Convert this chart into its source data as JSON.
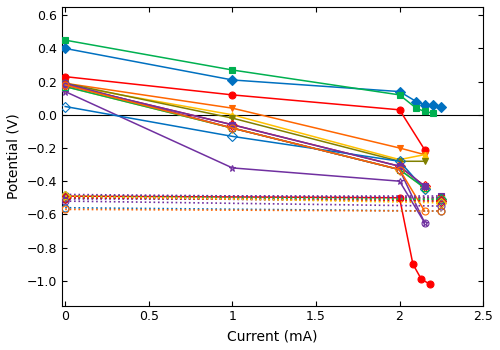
{
  "xlabel": "Current (mA)",
  "ylabel": "Potential (V)",
  "xlim": [
    -0.02,
    2.5
  ],
  "ylim": [
    -1.15,
    0.65
  ],
  "xticks": [
    0.0,
    0.5,
    1.0,
    1.5,
    2.0,
    2.5
  ],
  "yticks": [
    -1.0,
    -0.8,
    -0.6,
    -0.4,
    -0.2,
    0.0,
    0.2,
    0.4,
    0.6
  ],
  "cathode_series": [
    {
      "color": "#0070c0",
      "marker": "D",
      "filled": true,
      "x": [
        0.0,
        1.0,
        2.0,
        2.1,
        2.15,
        2.2,
        2.25
      ],
      "y": [
        0.4,
        0.21,
        0.14,
        0.08,
        0.06,
        0.06,
        0.05
      ]
    },
    {
      "color": "#00b050",
      "marker": "s",
      "filled": true,
      "x": [
        0.0,
        1.0,
        2.0,
        2.1,
        2.15,
        2.2
      ],
      "y": [
        0.45,
        0.27,
        0.12,
        0.04,
        0.02,
        0.01
      ]
    },
    {
      "color": "#ff0000",
      "marker": "o",
      "filled": true,
      "x": [
        0.0,
        1.0,
        2.0,
        2.15
      ],
      "y": [
        0.23,
        0.12,
        0.03,
        -0.21
      ]
    },
    {
      "color": "#ff6600",
      "marker": "v",
      "filled": true,
      "x": [
        0.0,
        1.0,
        2.0,
        2.15
      ],
      "y": [
        0.19,
        0.04,
        -0.2,
        -0.24
      ]
    },
    {
      "color": "#ffc000",
      "marker": "^",
      "filled": true,
      "x": [
        0.0,
        1.0,
        2.0,
        2.15
      ],
      "y": [
        0.18,
        0.0,
        -0.27,
        -0.24
      ]
    },
    {
      "color": "#808000",
      "marker": "v",
      "filled": true,
      "x": [
        0.0,
        1.0,
        2.0,
        2.15
      ],
      "y": [
        0.19,
        -0.02,
        -0.28,
        -0.28
      ]
    },
    {
      "color": "#ff0000",
      "marker": "D",
      "filled": false,
      "x": [
        0.0,
        1.0,
        2.0,
        2.15
      ],
      "y": [
        0.18,
        -0.06,
        -0.31,
        -0.43
      ]
    },
    {
      "color": "#ffc000",
      "marker": "D",
      "filled": false,
      "x": [
        0.0,
        1.0,
        2.0,
        2.15
      ],
      "y": [
        0.17,
        -0.08,
        -0.33,
        -0.44
      ]
    },
    {
      "color": "#7030a0",
      "marker": "*",
      "filled": false,
      "x": [
        0.0,
        1.0,
        2.0,
        2.15
      ],
      "y": [
        0.14,
        -0.32,
        -0.4,
        -0.65
      ]
    },
    {
      "color": "#0070c0",
      "marker": "D",
      "filled": false,
      "x": [
        0.0,
        1.0,
        2.0,
        2.15
      ],
      "y": [
        0.05,
        -0.13,
        -0.28,
        -0.45
      ]
    },
    {
      "color": "#00b050",
      "marker": "s",
      "filled": false,
      "x": [
        0.0,
        1.0,
        2.0,
        2.15
      ],
      "y": [
        0.17,
        -0.08,
        -0.33,
        -0.44
      ]
    },
    {
      "color": "#7030a0",
      "marker": "s",
      "filled": true,
      "x": [
        0.0,
        1.0,
        2.0,
        2.15
      ],
      "y": [
        0.18,
        -0.06,
        -0.31,
        -0.43
      ]
    },
    {
      "color": "#7030a0",
      "marker": "o",
      "filled": false,
      "x": [
        0.0,
        1.0,
        2.0,
        2.15
      ],
      "y": [
        0.19,
        -0.08,
        -0.33,
        -0.65
      ]
    },
    {
      "color": "#ff6600",
      "marker": "o",
      "filled": false,
      "x": [
        0.0,
        1.0,
        2.0,
        2.15
      ],
      "y": [
        0.18,
        -0.08,
        -0.33,
        -0.58
      ]
    },
    {
      "color": "#ff0000",
      "marker": "o",
      "filled": true,
      "x": [
        0.0,
        2.0,
        2.08,
        2.13,
        2.18
      ],
      "y": [
        -0.49,
        -0.5,
        -0.9,
        -0.99,
        -1.02
      ]
    }
  ],
  "anode_series": [
    {
      "color": "#7030a0",
      "marker": "s",
      "filled": true,
      "x": [
        0.0,
        2.25
      ],
      "y": [
        -0.49,
        -0.49
      ]
    },
    {
      "color": "#7030a0",
      "marker": "o",
      "filled": false,
      "x": [
        0.0,
        2.25
      ],
      "y": [
        -0.51,
        -0.51
      ]
    },
    {
      "color": "#0070c0",
      "marker": "s",
      "filled": false,
      "x": [
        0.0,
        2.25
      ],
      "y": [
        -0.49,
        -0.5
      ]
    },
    {
      "color": "#00b050",
      "marker": "s",
      "filled": false,
      "x": [
        0.0,
        2.25
      ],
      "y": [
        -0.5,
        -0.51
      ]
    },
    {
      "color": "#ff0000",
      "marker": "s",
      "filled": false,
      "x": [
        0.0,
        2.25
      ],
      "y": [
        -0.49,
        -0.5
      ]
    },
    {
      "color": "#ffc000",
      "marker": "s",
      "filled": false,
      "x": [
        0.0,
        2.25
      ],
      "y": [
        -0.49,
        -0.51
      ]
    },
    {
      "color": "#7030a0",
      "marker": "*",
      "filled": false,
      "x": [
        0.0,
        2.25
      ],
      "y": [
        -0.48,
        -0.5
      ]
    },
    {
      "color": "#0070c0",
      "marker": "D",
      "filled": false,
      "x": [
        0.0,
        2.25
      ],
      "y": [
        -0.5,
        -0.52
      ]
    },
    {
      "color": "#00b050",
      "marker": "D",
      "filled": false,
      "x": [
        0.0,
        2.25
      ],
      "y": [
        -0.49,
        -0.51
      ]
    },
    {
      "color": "#ff0000",
      "marker": "D",
      "filled": false,
      "x": [
        0.0,
        2.25
      ],
      "y": [
        -0.5,
        -0.52
      ]
    },
    {
      "color": "#ffc000",
      "marker": "D",
      "filled": false,
      "x": [
        0.0,
        2.25
      ],
      "y": [
        -0.49,
        -0.53
      ]
    },
    {
      "color": "#7030a0",
      "marker": "o",
      "filled": false,
      "x": [
        0.0,
        2.25
      ],
      "y": [
        -0.52,
        -0.55
      ]
    },
    {
      "color": "#0070c0",
      "marker": "o",
      "filled": false,
      "x": [
        0.0,
        2.25
      ],
      "y": [
        -0.56,
        -0.58
      ]
    },
    {
      "color": "#ff6600",
      "marker": "o",
      "filled": false,
      "x": [
        0.0,
        2.25
      ],
      "y": [
        -0.57,
        -0.58
      ]
    }
  ]
}
